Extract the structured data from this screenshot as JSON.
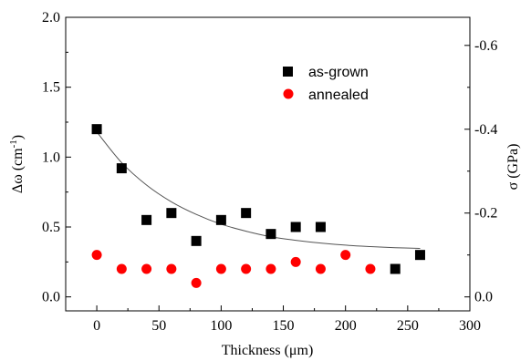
{
  "chart_data": {
    "type": "scatter",
    "xlabel": "Thickness (μm)",
    "ylabel": "Δω (cm",
    "ylabel_sup": "-1",
    "ylabel_close": ")",
    "y2label": "σ (GPa)",
    "xlim": [
      -25,
      300
    ],
    "ylim": [
      -0.1,
      2.0
    ],
    "y2lim": [
      0.0333,
      -0.667
    ],
    "x_ticks": [
      0,
      50,
      100,
      150,
      200,
      250,
      300
    ],
    "x_tick_labels": [
      "0",
      "50",
      "100",
      "150",
      "200",
      "250",
      "300"
    ],
    "y_ticks": [
      0.0,
      0.5,
      1.0,
      1.5,
      2.0
    ],
    "y_tick_labels": [
      "0.0",
      "0.5",
      "1.0",
      "1.5",
      "2.0"
    ],
    "y2_ticks": [
      0.0,
      -0.2,
      -0.4,
      -0.6
    ],
    "y2_tick_labels": [
      "0.0",
      "-0.2",
      "-0.4",
      "-0.6"
    ],
    "grid": false,
    "legend_position": "top-right",
    "series": [
      {
        "name": "as-grown",
        "marker": "square",
        "color": "#000000",
        "x": [
          0,
          20,
          40,
          60,
          80,
          100,
          120,
          140,
          160,
          180,
          240,
          260
        ],
        "y": [
          1.2,
          0.92,
          0.55,
          0.6,
          0.4,
          0.55,
          0.6,
          0.45,
          0.5,
          0.5,
          0.2,
          0.3
        ]
      },
      {
        "name": "annealed",
        "marker": "circle",
        "color": "#ff0000",
        "x": [
          0,
          20,
          40,
          60,
          80,
          100,
          120,
          140,
          160,
          180,
          200,
          220
        ],
        "y": [
          0.3,
          0.2,
          0.2,
          0.2,
          0.1,
          0.2,
          0.2,
          0.2,
          0.25,
          0.2,
          0.3,
          0.2
        ]
      }
    ],
    "fit_curve": {
      "color": "#555555",
      "x": [
        0,
        20,
        40,
        60,
        80,
        100,
        120,
        140,
        160,
        180,
        200,
        220,
        240,
        260
      ],
      "y": [
        1.18,
        0.96,
        0.8,
        0.68,
        0.59,
        0.52,
        0.47,
        0.43,
        0.405,
        0.385,
        0.37,
        0.36,
        0.352,
        0.347
      ]
    }
  }
}
